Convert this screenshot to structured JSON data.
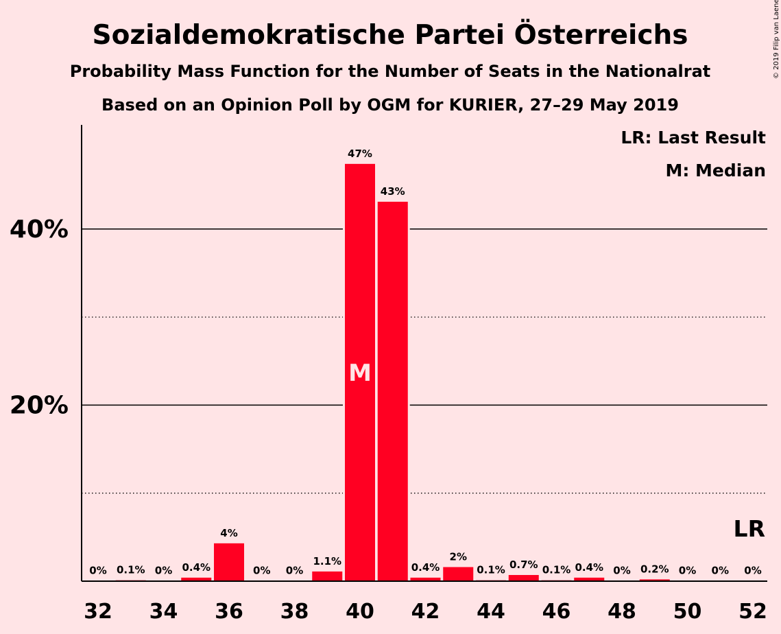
{
  "chart_data": {
    "type": "bar",
    "title": "Sozialdemokratische Partei Österreichs",
    "subtitle1": "Probability Mass Function for the Number of Seats in the Nationalrat",
    "subtitle2": "Based on an Opinion Poll by OGM for KURIER, 27–29 May 2019",
    "copyright": "© 2019 Filip van Laenen",
    "x": [
      32,
      33,
      34,
      35,
      36,
      37,
      38,
      39,
      40,
      41,
      42,
      43,
      44,
      45,
      46,
      47,
      48,
      49,
      50,
      51,
      52
    ],
    "values": [
      0.02,
      0.1,
      0.02,
      0.4,
      4.3,
      0.02,
      0.02,
      1.1,
      47.4,
      43.1,
      0.4,
      1.6,
      0.1,
      0.7,
      0.1,
      0.4,
      0.05,
      0.2,
      0.02,
      0.02,
      0.02
    ],
    "labels": [
      "0%",
      "0.1%",
      "0%",
      "0.4%",
      "4%",
      "0%",
      "0%",
      "1.1%",
      "47%",
      "43%",
      "0.4%",
      "2%",
      "0.1%",
      "0.7%",
      "0.1%",
      "0.4%",
      "0%",
      "0.2%",
      "0%",
      "0%",
      "0%"
    ],
    "xticks": [
      "32",
      "34",
      "36",
      "38",
      "40",
      "42",
      "44",
      "46",
      "48",
      "50",
      "52"
    ],
    "yticks": [
      {
        "value": 20,
        "label": "20%"
      },
      {
        "value": 40,
        "label": "40%"
      }
    ],
    "minor_grid": [
      10,
      30
    ],
    "ylim": [
      0,
      52
    ],
    "xlabel": "",
    "ylabel": "",
    "median_seat": 40,
    "median_mark": "M",
    "last_result_seat": 52,
    "last_result_mark": "LR",
    "legend": [
      "LR: Last Result",
      "M: Median"
    ],
    "colors": {
      "bar": "#ff0022",
      "background": "#ffe4e6",
      "text": "#1a0f14"
    }
  }
}
